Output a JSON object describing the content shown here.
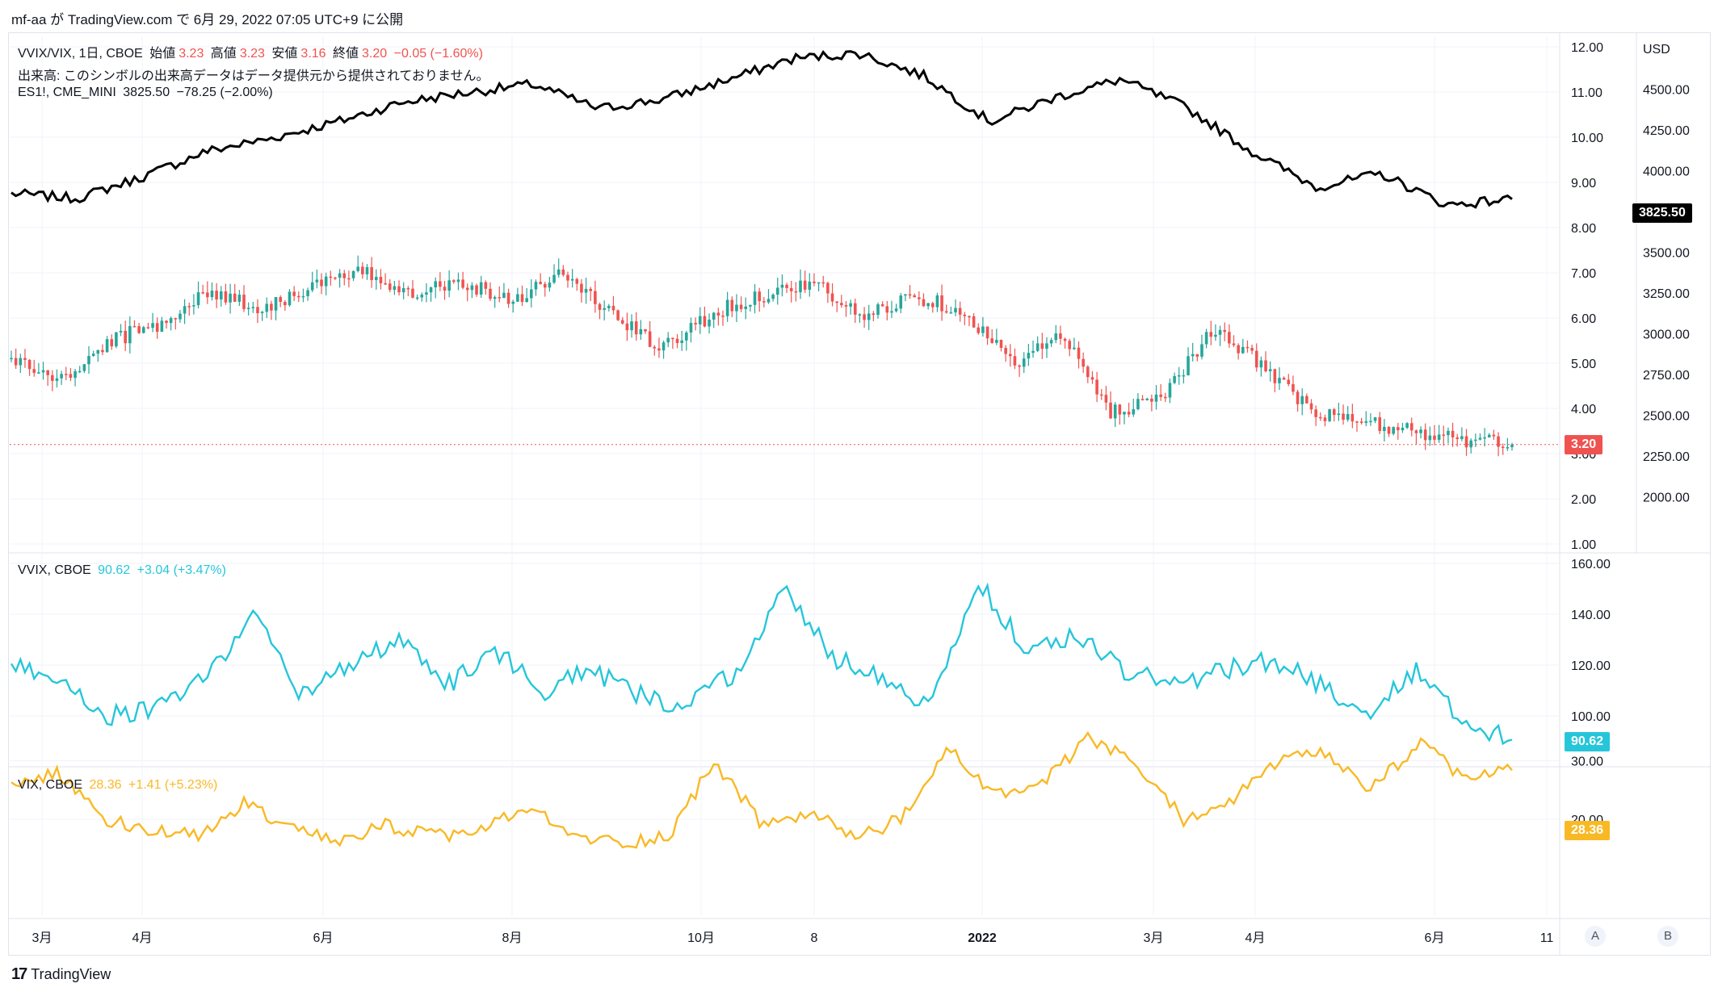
{
  "header": {
    "publish_text": "mf-aa が TradingView.com で 6月 29, 2022 07:05 UTC+9 に公開"
  },
  "legend_main": {
    "symbol": "VVIX/VIX, 1日, CBOE",
    "open_label": "始値",
    "open": "3.23",
    "high_label": "高値",
    "high": "3.23",
    "low_label": "安値",
    "low": "3.16",
    "close_label": "終値",
    "close": "3.20",
    "change": "−0.05 (−1.60%)",
    "volume_note": "出来高: このシンボルの出来高データはデータ提供元から提供されておりません。",
    "es_symbol": "ES1!, CME_MINI",
    "es_value": "3825.50",
    "es_change": "−78.25 (−2.00%)"
  },
  "legend_vvix": {
    "symbol": "VVIX, CBOE",
    "value": "90.62",
    "change": "+3.04 (+3.47%)"
  },
  "legend_vix": {
    "symbol": "VIX, CBOE",
    "value": "28.36",
    "change": "+1.41 (+5.23%)"
  },
  "axis": {
    "currency": "USD",
    "ratio_ticks": [
      "12.00",
      "11.00",
      "10.00",
      "9.00",
      "8.00",
      "7.00",
      "6.00",
      "5.00",
      "4.00",
      "3.00",
      "2.00",
      "1.00"
    ],
    "es_ticks": [
      "4750.00",
      "4500.00",
      "4250.00",
      "4000.00",
      "3750.00",
      "3500.00",
      "3250.00",
      "3000.00",
      "2750.00",
      "2500.00",
      "2250.00",
      "2000.00"
    ],
    "vvix_ticks": [
      "160.00",
      "140.00",
      "120.00",
      "100.00"
    ],
    "vix_ticks": [
      "30.00",
      "20.00"
    ],
    "time_labels": [
      "3月",
      "4月",
      "6月",
      "8月",
      "10月",
      "8",
      "2022",
      "3月",
      "4月",
      "6月",
      "11"
    ],
    "price_tag_ratio": "3.20",
    "price_tag_es": "3825.50",
    "price_tag_vvix": "90.62",
    "price_tag_vix": "28.36",
    "scale_btn_a": "A",
    "scale_btn_b": "B"
  },
  "footer": {
    "brand": "TradingView",
    "logo": "17"
  },
  "colors": {
    "up": "#26a69a",
    "down": "#ef5350",
    "es": "#000000",
    "vvix": "#26c6da",
    "vix": "#f9b925",
    "grid": "#f0f3fa"
  },
  "chart_data": [
    {
      "type": "line",
      "title": "ES1!, CME_MINI",
      "ylim": [
        2000,
        4750
      ],
      "x": [
        "3月",
        "4月",
        "6月",
        "8月",
        "10月",
        "8",
        "2022",
        "3月",
        "4月",
        "6月",
        "11"
      ],
      "values": [
        3860,
        3960,
        4200,
        4420,
        4380,
        4690,
        4720,
        4300,
        4560,
        3790,
        3825.5
      ]
    },
    {
      "type": "candlestick",
      "title": "VVIX/VIX, 1日, CBOE",
      "ylim": [
        1,
        12
      ],
      "x": [
        "3月",
        "4月",
        "6月",
        "8月",
        "10月",
        "8",
        "2022",
        "3月",
        "4月",
        "6月",
        "11"
      ],
      "values": [
        5.1,
        5.9,
        6.7,
        7.0,
        5.3,
        6.5,
        6.5,
        3.7,
        5.7,
        3.6,
        3.2
      ]
    },
    {
      "type": "line",
      "title": "VVIX, CBOE",
      "ylim": [
        80,
        160
      ],
      "x": [
        "3月",
        "4月",
        "6月",
        "8月",
        "10月",
        "8",
        "2022",
        "3月",
        "4月",
        "6月",
        "11"
      ],
      "values": [
        120,
        100,
        140,
        130,
        108,
        155,
        152,
        138,
        112,
        98,
        90.62
      ]
    },
    {
      "type": "line",
      "title": "VIX, CBOE",
      "ylim": [
        10,
        40
      ],
      "x": [
        "3月",
        "4月",
        "6月",
        "8月",
        "10月",
        "8",
        "2022",
        "3月",
        "4月",
        "6月",
        "11"
      ],
      "values": [
        26,
        18,
        25,
        17,
        19,
        30,
        17,
        34,
        20,
        33,
        28.36
      ]
    }
  ]
}
